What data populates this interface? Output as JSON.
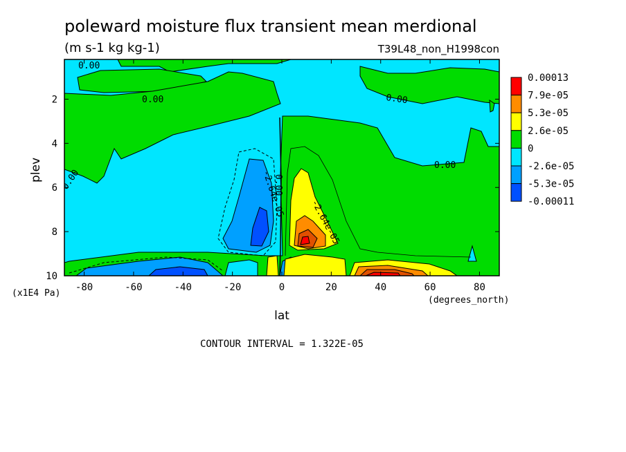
{
  "chart_data": {
    "type": "heatmap",
    "title": "poleward moisture flux transient mean merdional",
    "subtitle": "(m s-1 kg kg-1)",
    "run_label": "T39L48_non_H1998con",
    "xlabel": "lat",
    "x_units": "(degrees_north)",
    "ylabel": "plev",
    "y_units": "(x1E4 Pa)",
    "xlim": [
      -88,
      88
    ],
    "ylim": [
      0.2,
      10
    ],
    "y_inverted": true,
    "x_ticks": [
      -80,
      -60,
      -40,
      -20,
      0,
      20,
      40,
      60,
      80
    ],
    "y_ticks": [
      2,
      4,
      6,
      8,
      10
    ],
    "contour_interval_text": "CONTOUR INTERVAL = 1.322E-05",
    "contour_labels": [
      "0.00",
      "0.00",
      "0.00",
      "0.00",
      "0.00",
      "0.00",
      "-2.64e-05",
      "-2.64e-05"
    ],
    "legend": {
      "position": "right",
      "levels": [
        {
          "label": "0.00013",
          "color": "#ff0000"
        },
        {
          "label": "7.9e-05",
          "color": "#ff8c00"
        },
        {
          "label": "5.3e-05",
          "color": "#ffff00"
        },
        {
          "label": "2.6e-05",
          "color": "#00dc00"
        },
        {
          "label": "0",
          "color": "#00e6ff"
        },
        {
          "label": "-2.6e-05",
          "color": "#00a0ff"
        },
        {
          "label": "-5.3e-05",
          "color": "#0050ff"
        },
        {
          "label": "-0.00011",
          "color": ""
        }
      ]
    },
    "colors": {
      "green": "#00dc00",
      "cyan": "#00e6ff",
      "yellow": "#ffff00",
      "orange": "#ff8c00",
      "dark_orange": "#e05000",
      "red": "#ff0000",
      "light_blue": "#00a0ff",
      "blue": "#0050ff"
    }
  }
}
